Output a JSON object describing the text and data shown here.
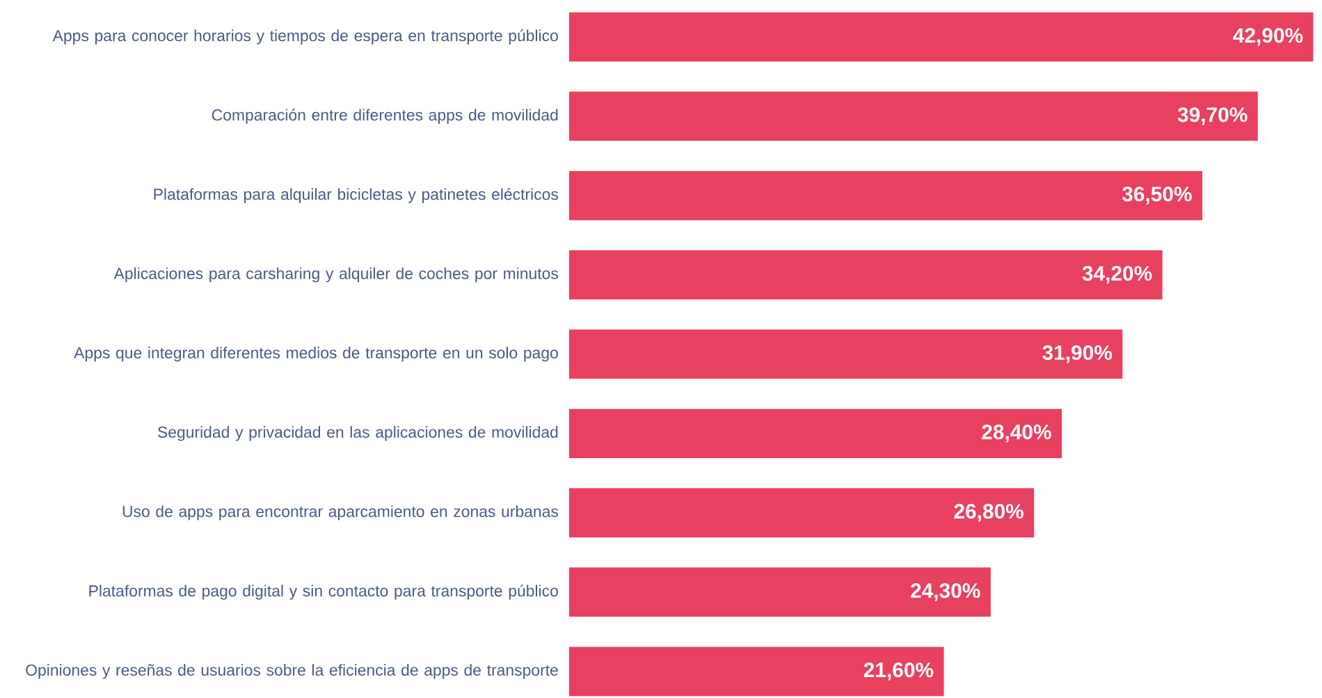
{
  "chart_data": {
    "type": "bar",
    "orientation": "horizontal",
    "categories": [
      "Apps para conocer horarios y tiempos de espera en transporte público",
      "Comparación entre diferentes apps de movilidad",
      "Plataformas para alquilar bicicletas y patinetes eléctricos",
      "Aplicaciones para carsharing y alquiler de coches por minutos",
      "Apps que integran diferentes medios de transporte en un solo pago",
      "Seguridad y privacidad en las aplicaciones de movilidad",
      "Uso de apps para encontrar aparcamiento en zonas urbanas",
      "Plataformas de pago digital y sin contacto para transporte público",
      "Opiniones y reseñas de usuarios sobre la eficiencia de apps de transporte"
    ],
    "values": [
      42.9,
      39.7,
      36.5,
      34.2,
      31.9,
      28.4,
      26.8,
      24.3,
      21.6
    ],
    "value_labels": [
      "42,90%",
      "39,70%",
      "36,50%",
      "34,20%",
      "31,90%",
      "28,40%",
      "26,80%",
      "24,30%",
      "21,60%"
    ],
    "color": "#e8405f",
    "xlim": [
      0,
      43
    ],
    "tick_labels": "y"
  }
}
